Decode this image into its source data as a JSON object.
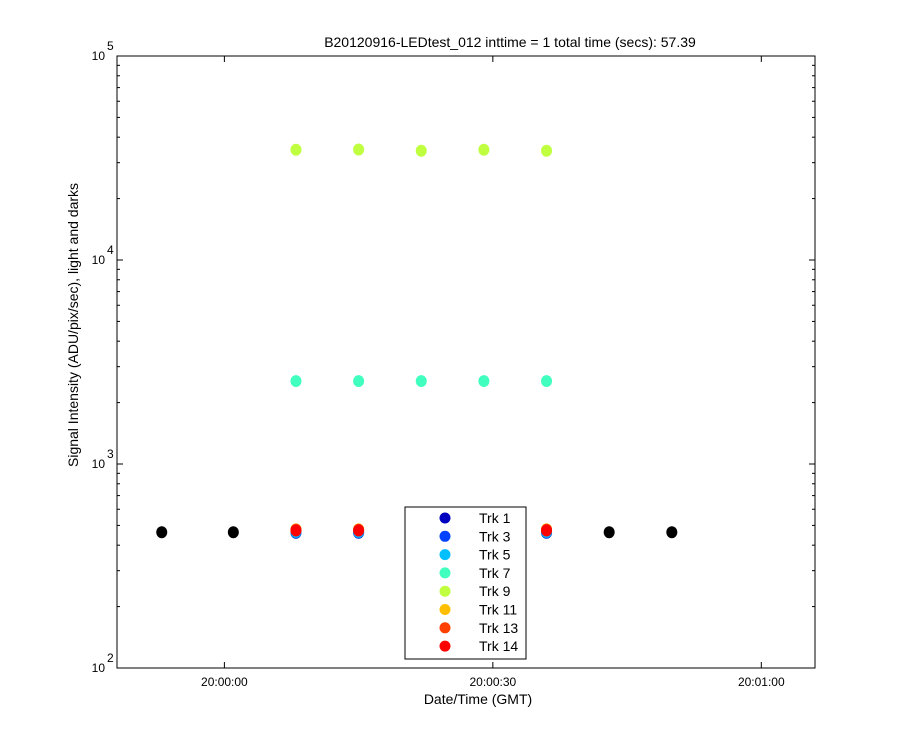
{
  "chart_data": {
    "type": "scatter",
    "title": "B20120916-LEDtest_012 inttime = 1 total time (secs): 57.39",
    "xlabel": "Date/Time (GMT)",
    "ylabel": "Signal Intensity (ADU/pix/sec), light and darks",
    "yscale": "log",
    "ylim": [
      100,
      100000
    ],
    "xlim": [
      "19:59:48",
      "20:01:06"
    ],
    "x_ticks": [
      "20:00:00",
      "20:00:30",
      "20:01:00"
    ],
    "y_ticks": [
      {
        "base": "10",
        "exp": "2"
      },
      {
        "base": "10",
        "exp": "3"
      },
      {
        "base": "10",
        "exp": "4"
      },
      {
        "base": "10",
        "exp": "5"
      }
    ],
    "grid": false,
    "legend_position": "bottom-center",
    "series": [
      {
        "name": "Trk 1",
        "color": "#0000bf",
        "x": [
          "20:00:08",
          "20:00:15",
          "20:00:22",
          "20:00:29",
          "20:00:36"
        ],
        "y": [
          460,
          460,
          460,
          460,
          460
        ]
      },
      {
        "name": "Trk 3",
        "color": "#0040ff",
        "x": [
          "20:00:08",
          "20:00:15",
          "20:00:22",
          "20:00:29",
          "20:00:36"
        ],
        "y": [
          462,
          462,
          462,
          462,
          462
        ]
      },
      {
        "name": "Trk 5",
        "color": "#00bfff",
        "x": [
          "20:00:08",
          "20:00:15",
          "20:00:22",
          "20:00:29",
          "20:00:36"
        ],
        "y": [
          465,
          465,
          465,
          465,
          465
        ]
      },
      {
        "name": "Trk 7",
        "color": "#40ffbf",
        "x": [
          "20:00:08",
          "20:00:15",
          "20:00:22",
          "20:00:29",
          "20:00:36"
        ],
        "y": [
          2550,
          2550,
          2550,
          2550,
          2550
        ]
      },
      {
        "name": "Trk 9",
        "color": "#bfff40",
        "x": [
          "20:00:08",
          "20:00:15",
          "20:00:22",
          "20:00:29",
          "20:00:36"
        ],
        "y": [
          34700,
          34800,
          34300,
          34700,
          34300
        ]
      },
      {
        "name": "Trk 11",
        "color": "#ffbf00",
        "x": [
          "20:00:08",
          "20:00:15",
          "20:00:22",
          "20:00:29",
          "20:00:36"
        ],
        "y": [
          478,
          478,
          478,
          478,
          478
        ]
      },
      {
        "name": "Trk 13",
        "color": "#ff4000",
        "x": [
          "20:00:08",
          "20:00:15",
          "20:00:22",
          "20:00:29",
          "20:00:36"
        ],
        "y": [
          476,
          476,
          476,
          476,
          476
        ]
      },
      {
        "name": "Trk 14",
        "color": "#ff0000",
        "x": [
          "20:00:08",
          "20:00:15",
          "20:00:22",
          "20:00:29",
          "20:00:36"
        ],
        "y": [
          472,
          472,
          472,
          472,
          472
        ]
      },
      {
        "color": "#000000",
        "x": [
          "19:59:53",
          "20:00:01",
          "20:00:43",
          "20:00:50"
        ],
        "y": [
          463,
          463,
          463,
          463
        ]
      }
    ]
  }
}
